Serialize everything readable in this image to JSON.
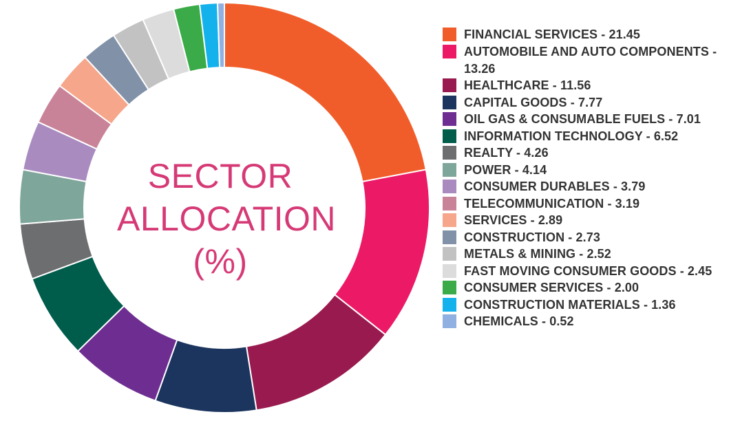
{
  "chart_data": {
    "type": "pie",
    "center_title": [
      "SECTOR",
      "ALLOCATION",
      "(%)"
    ],
    "legend_position": "right",
    "slices": [
      {
        "label": "FINANCIAL SERVICES",
        "value": 21.45,
        "value_text": "21.45",
        "color": "#f15d2a"
      },
      {
        "label": "AUTOMOBILE AND AUTO COMPONENTS",
        "value": 13.26,
        "value_text": "13.26",
        "color": "#ec1a66"
      },
      {
        "label": "HEALTHCARE",
        "value": 11.56,
        "value_text": "11.56",
        "color": "#991a4f"
      },
      {
        "label": "CAPITAL GOODS",
        "value": 7.77,
        "value_text": "7.77",
        "color": "#1c355e"
      },
      {
        "label": "OIL GAS & CONSUMABLE FUELS",
        "value": 7.01,
        "value_text": "7.01",
        "color": "#6e2e91"
      },
      {
        "label": "INFORMATION TECHNOLOGY",
        "value": 6.52,
        "value_text": "6.52",
        "color": "#005c4b"
      },
      {
        "label": "REALTY",
        "value": 4.26,
        "value_text": "4.26",
        "color": "#6d6e70"
      },
      {
        "label": "POWER",
        "value": 4.14,
        "value_text": "4.14",
        "color": "#7fa69b"
      },
      {
        "label": "CONSUMER DURABLES",
        "value": 3.79,
        "value_text": "3.79",
        "color": "#a98bc0"
      },
      {
        "label": "TELECOMMUNICATION",
        "value": 3.19,
        "value_text": "3.19",
        "color": "#c98398"
      },
      {
        "label": "SERVICES",
        "value": 2.89,
        "value_text": "2.89",
        "color": "#f6a68a"
      },
      {
        "label": "CONSTRUCTION",
        "value": 2.73,
        "value_text": "2.73",
        "color": "#8191a8"
      },
      {
        "label": "METALS & MINING",
        "value": 2.52,
        "value_text": "2.52",
        "color": "#c2c2c2"
      },
      {
        "label": "FAST MOVING CONSUMER GOODS",
        "value": 2.45,
        "value_text": "2.45",
        "color": "#dcdcdc"
      },
      {
        "label": "CONSUMER SERVICES",
        "value": 2.0,
        "value_text": "2.00",
        "color": "#3aab48"
      },
      {
        "label": "CONSTRUCTION MATERIALS",
        "value": 1.36,
        "value_text": "1.36",
        "color": "#13b2ed"
      },
      {
        "label": "CHEMICALS",
        "value": 0.52,
        "value_text": "0.52",
        "color": "#8fb0e0"
      }
    ]
  }
}
